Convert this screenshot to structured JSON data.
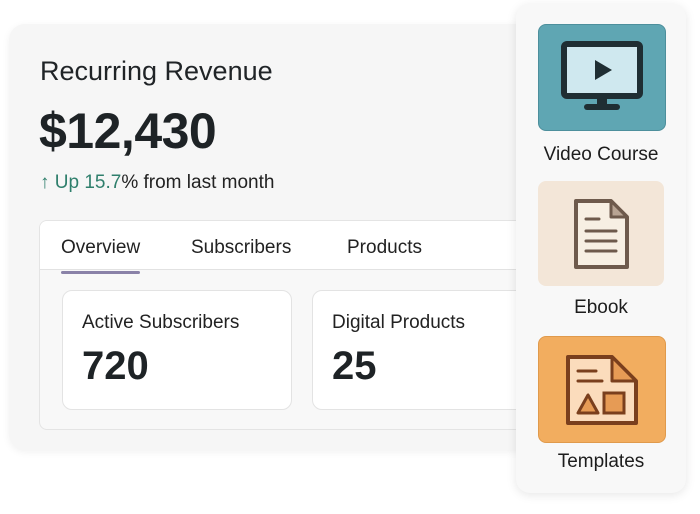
{
  "header": {
    "title": "Recurring Revenue",
    "amount": "$12,430",
    "change_arrow": "↑",
    "change_value": "Up 15.7",
    "change_suffix": "% from last month"
  },
  "tabs": [
    {
      "label": "Overview",
      "active": true
    },
    {
      "label": "Subscribers"
    },
    {
      "label": "Products"
    }
  ],
  "stats": [
    {
      "label": "Active Subscribers",
      "value": "720"
    },
    {
      "label": "Digital Products",
      "value": "25"
    }
  ],
  "products": [
    {
      "label": "Video Course",
      "icon": "monitor-play-icon",
      "color": "#5fa6b3"
    },
    {
      "label": "Ebook",
      "icon": "document-icon",
      "color": "#f3e6d8"
    },
    {
      "label": "Templates",
      "icon": "template-icon",
      "color": "#f2ad5f"
    }
  ],
  "colors": {
    "accent_green": "#2f7f6c",
    "tab_indicator": "#8a82a8"
  }
}
